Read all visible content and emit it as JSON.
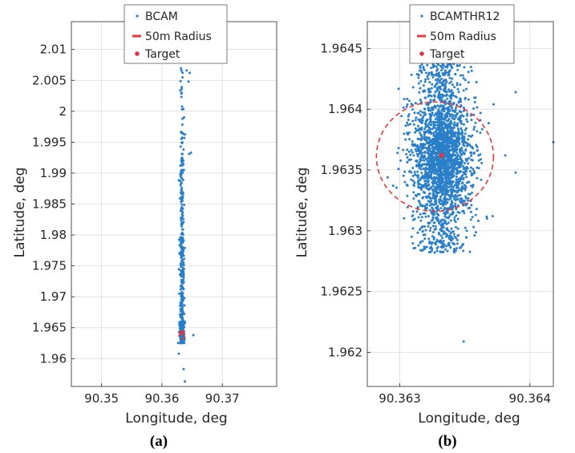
{
  "chart_data": [
    {
      "panel": "(a)",
      "type": "scatter",
      "xlabel": "Longitude, deg",
      "ylabel": "Latitude, deg",
      "xlim": [
        90.345,
        90.379
      ],
      "ylim": [
        1.9555,
        2.0145
      ],
      "xticks": [
        90.35,
        90.36,
        90.37
      ],
      "xtick_labels": [
        "90.35",
        "90.36",
        "90.37"
      ],
      "yticks": [
        1.96,
        1.965,
        1.97,
        1.975,
        1.98,
        1.985,
        1.99,
        1.995,
        2.0,
        2.005,
        2.01
      ],
      "ytick_labels": [
        "1.96",
        "1.965",
        "1.97",
        "1.975",
        "1.98",
        "1.985",
        "1.99",
        "1.995",
        "2",
        "2.005",
        "2.01"
      ],
      "grid": true,
      "legend_position": "top-center",
      "series": [
        {
          "name": "BCAM",
          "kind": "points",
          "color": "#2a7fc9",
          "x_center": 90.3633,
          "x_spread": 0.0005,
          "y_clusters": [
            {
              "y_min": 1.9625,
              "y_max": 1.966,
              "count": 260
            },
            {
              "y_min": 1.966,
              "y_max": 1.98,
              "count": 180
            },
            {
              "y_min": 1.98,
              "y_max": 1.995,
              "count": 90
            },
            {
              "y_min": 1.995,
              "y_max": 2.007,
              "count": 25
            }
          ],
          "outliers": [
            [
              90.3641,
              2.0066
            ],
            [
              90.3646,
              2.0062
            ],
            [
              90.3644,
              2.0048
            ],
            [
              90.3637,
              1.9957
            ],
            [
              90.3636,
              1.9583
            ],
            [
              90.3628,
              1.9608
            ],
            [
              90.3638,
              1.9563
            ],
            [
              90.3652,
              1.9638
            ],
            [
              90.3645,
              1.9931
            ],
            [
              90.3648,
              1.9933
            ]
          ]
        },
        {
          "name": "50m Radius",
          "kind": "dashed-circle",
          "color": "#e8393b",
          "center": [
            90.3633,
            1.9636
          ],
          "radius_deg": 0.00045
        },
        {
          "name": "Target",
          "kind": "marker",
          "color": "#d9364a",
          "x": 90.3633,
          "y": 1.9642
        }
      ]
    },
    {
      "panel": "(b)",
      "type": "scatter",
      "xlabel": "Longitude, deg",
      "ylabel": "Latitude, deg",
      "xlim": [
        90.36275,
        90.36418
      ],
      "ylim": [
        1.96172,
        1.96472
      ],
      "xticks": [
        90.363,
        90.364
      ],
      "xtick_labels": [
        "90.363",
        "90.364"
      ],
      "yticks": [
        1.962,
        1.9625,
        1.963,
        1.9635,
        1.964,
        1.9645
      ],
      "ytick_labels": [
        "1.962",
        "1.9625",
        "1.963",
        "1.9635",
        "1.964",
        "1.9645"
      ],
      "grid": true,
      "legend_position": "top-center",
      "series": [
        {
          "name": "BCAMTHR12",
          "kind": "points",
          "color": "#2a7fc9",
          "x_center": 90.36332,
          "x_sigma": 0.00011,
          "y_min": 1.96282,
          "y_max": 1.96445,
          "dense_center": [
            90.36332,
            1.96362
          ],
          "count": 2400,
          "outliers": [
            [
              90.36349,
              1.96209
            ],
            [
              90.36418,
              1.96373
            ],
            [
              90.36389,
              1.96348
            ],
            [
              90.36372,
              1.96404
            ],
            [
              90.36389,
              1.96414
            ],
            [
              90.36381,
              1.96362
            ],
            [
              90.36378,
              1.96444
            ]
          ]
        },
        {
          "name": "50m Radius",
          "kind": "dashed-circle",
          "color": "#e8393b",
          "center": [
            90.36327,
            1.96361
          ],
          "radius_deg": 0.00045
        },
        {
          "name": "Target",
          "kind": "marker",
          "color": "#d9364a",
          "x": 90.36332,
          "y": 1.96362
        }
      ]
    }
  ],
  "captions": [
    "(a)",
    "(b)"
  ]
}
